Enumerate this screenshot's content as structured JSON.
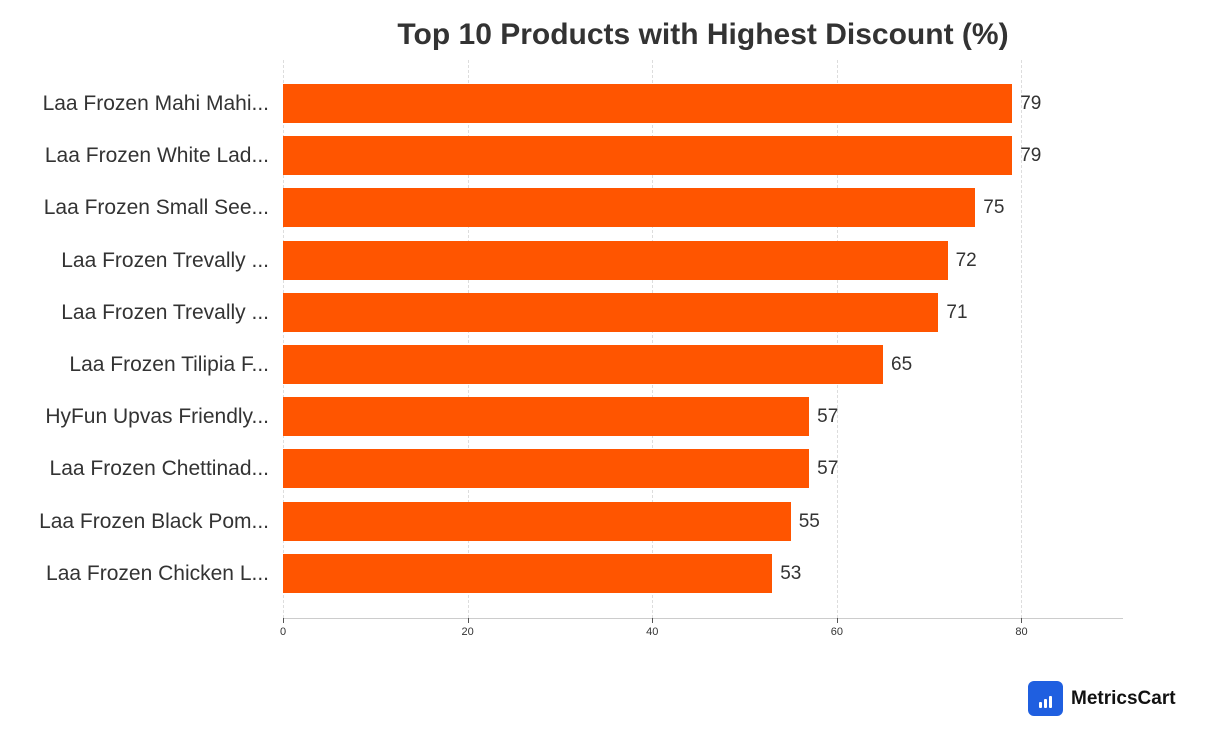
{
  "chart_data": {
    "type": "bar",
    "orientation": "horizontal",
    "title": "Top 10 Products with Highest Discount (%)",
    "xlabel": "",
    "ylabel": "",
    "categories": [
      "Laa Frozen Mahi Mahi...",
      "Laa Frozen White Lad...",
      "Laa Frozen Small See...",
      "Laa Frozen Trevally ...",
      "Laa Frozen Trevally ...",
      "Laa Frozen Tilipia F...",
      "HyFun Upvas Friendly...",
      "Laa Frozen Chettinad...",
      "Laa Frozen Black Pom...",
      "Laa Frozen Chicken L..."
    ],
    "values": [
      79,
      79,
      75,
      72,
      71,
      65,
      57,
      57,
      55,
      53
    ],
    "xlim": [
      0,
      91
    ],
    "xticks": [
      "0",
      "20",
      "40",
      "60",
      "80"
    ],
    "grid": true,
    "bar_color": "#ff5500",
    "data_labels": true
  },
  "branding": {
    "name": "MetricsCart",
    "color": "#1f5fe0"
  }
}
